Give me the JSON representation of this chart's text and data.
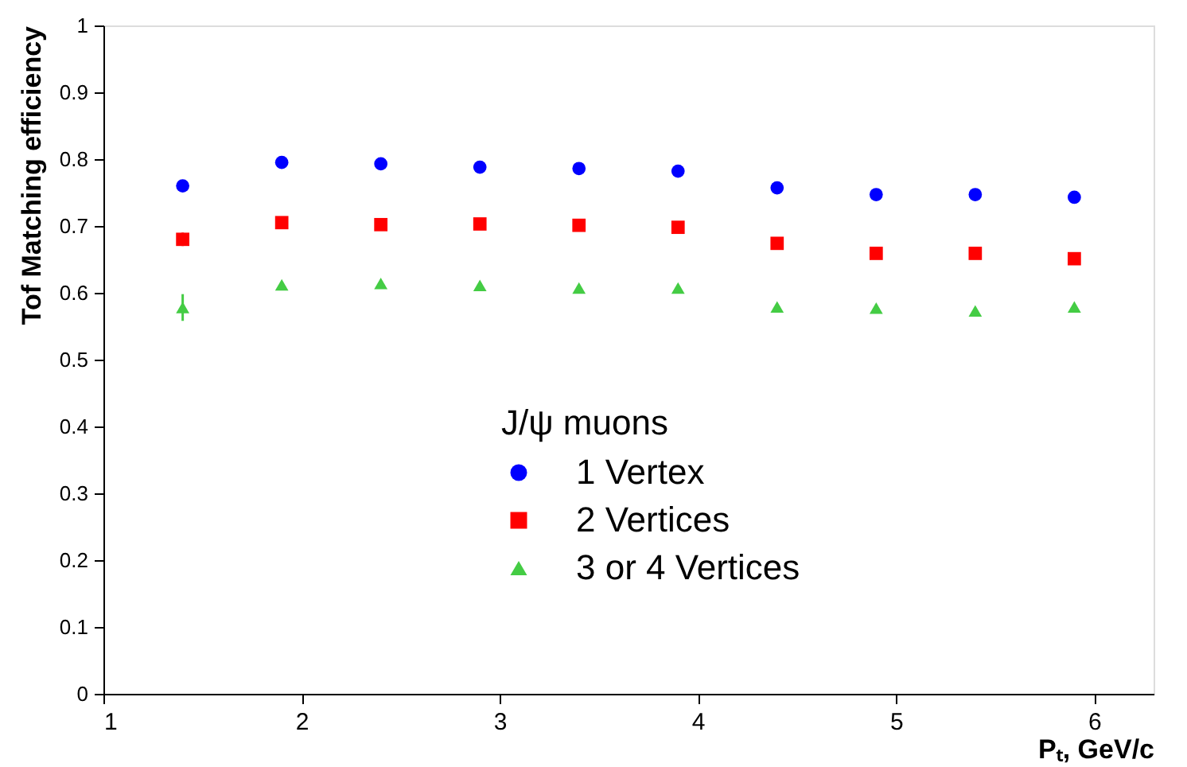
{
  "chart_data": {
    "type": "scatter",
    "xlabel": "Pₜ, GeV/c",
    "ylabel": "Tof Matching efficiency",
    "legend_title": "J/ψ muons",
    "x": [
      1.4,
      1.9,
      2.4,
      2.9,
      3.4,
      3.9,
      4.4,
      4.9,
      5.4,
      5.9
    ],
    "series": [
      {
        "name": "1 Vertex",
        "color": "#0000ff",
        "marker": "circle",
        "values": [
          0.76,
          0.795,
          0.793,
          0.788,
          0.786,
          0.782,
          0.757,
          0.747,
          0.747,
          0.743
        ]
      },
      {
        "name": "2 Vertices",
        "color": "#ff0000",
        "marker": "square",
        "values": [
          0.68,
          0.705,
          0.702,
          0.703,
          0.701,
          0.698,
          0.674,
          0.659,
          0.659,
          0.651
        ],
        "errors": [
          0.01,
          null,
          null,
          null,
          null,
          null,
          null,
          null,
          null,
          null
        ]
      },
      {
        "name": "3 or 4 Vertices",
        "color": "#44cc44",
        "marker": "triangle",
        "values": [
          0.578,
          0.612,
          0.614,
          0.611,
          0.607,
          0.607,
          0.579,
          0.577,
          0.573,
          0.579
        ],
        "errors": [
          0.02,
          null,
          null,
          null,
          null,
          null,
          null,
          null,
          null,
          null
        ]
      }
    ],
    "xlim": [
      1,
      6.3
    ],
    "xticks": [
      1,
      2,
      3,
      4,
      5,
      6
    ],
    "ylim": [
      0,
      1
    ],
    "yticks": [
      0,
      0.1,
      0.2,
      0.3,
      0.4,
      0.5,
      0.6,
      0.7,
      0.8,
      0.9,
      1
    ],
    "grid": false,
    "legend": "bottom right"
  }
}
